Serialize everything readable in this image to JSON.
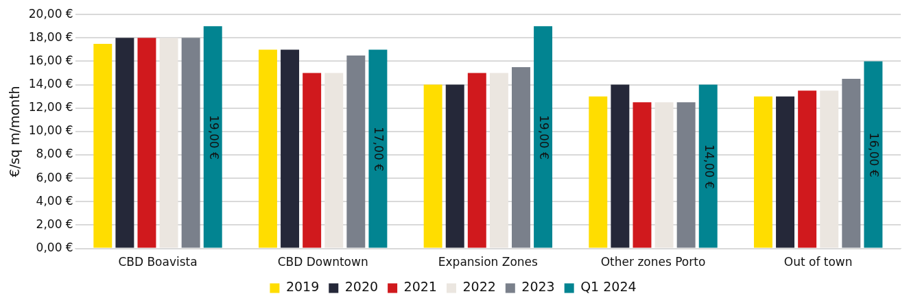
{
  "chart_data": {
    "type": "bar",
    "ylabel": "€/sq m/month",
    "categories": [
      "CBD Boavista",
      "CBD Downtown",
      "Expansion Zones",
      "Other zones Porto",
      "Out of town"
    ],
    "series": [
      {
        "name": "2019",
        "color": "#ffdd00",
        "values": [
          17.5,
          17,
          14,
          13,
          13
        ]
      },
      {
        "name": "2020",
        "color": "#252839",
        "values": [
          18,
          17,
          14,
          14,
          13
        ]
      },
      {
        "name": "2021",
        "color": "#d0191d",
        "values": [
          18,
          15,
          15,
          12.5,
          13.5
        ]
      },
      {
        "name": "2022",
        "color": "#ebe6e0",
        "values": [
          18,
          15,
          15,
          12.5,
          13.5
        ]
      },
      {
        "name": "2023",
        "color": "#7a808b",
        "values": [
          18,
          16.5,
          15.5,
          12.5,
          14.5
        ]
      },
      {
        "name": "Q1 2024",
        "color": "#028491",
        "values": [
          19,
          17,
          19,
          14,
          16
        ],
        "value_labels": [
          "19,00 €",
          "17,00 €",
          "19,00 €",
          "14,00 €",
          "16,00 €"
        ]
      }
    ],
    "ylim": [
      0,
      20
    ],
    "yticks": [
      {
        "value": 0,
        "label": "0,00 €"
      },
      {
        "value": 2,
        "label": "2,00 €"
      },
      {
        "value": 4,
        "label": "4,00 €"
      },
      {
        "value": 6,
        "label": "6,00 €"
      },
      {
        "value": 8,
        "label": "8,00 €"
      },
      {
        "value": 10,
        "label": "10,00 €"
      },
      {
        "value": 12,
        "label": "12,00 €"
      },
      {
        "value": 14,
        "label": "14,00 €"
      },
      {
        "value": 16,
        "label": "16,00 €"
      },
      {
        "value": 18,
        "label": "18,00 €"
      },
      {
        "value": 20,
        "label": "20,00 €"
      }
    ],
    "grid": "y",
    "legend": "bottom"
  }
}
